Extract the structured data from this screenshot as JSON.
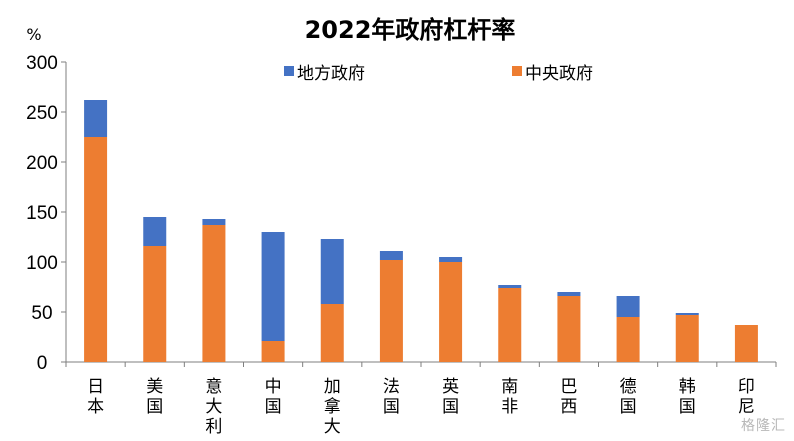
{
  "chart_data": {
    "type": "bar",
    "stacked": true,
    "title": "2022年政府杠杆率",
    "ylabel": "%",
    "xlabel": "",
    "ylim": [
      0,
      300
    ],
    "yticks": [
      0,
      50,
      100,
      150,
      200,
      250,
      300
    ],
    "grid": false,
    "legend_position": "top",
    "categories": [
      "日本",
      "美国",
      "意大利",
      "中国",
      "加拿大",
      "法国",
      "英国",
      "南非",
      "巴西",
      "德国",
      "韩国",
      "印尼"
    ],
    "series": [
      {
        "name": "中央政府",
        "color": "#ED7D31",
        "values": [
          225,
          116,
          137,
          21,
          58,
          102,
          100,
          74,
          66,
          45,
          47,
          37
        ]
      },
      {
        "name": "地方政府",
        "color": "#4472C4",
        "values": [
          37,
          29,
          6,
          109,
          65,
          9,
          5,
          3,
          4,
          21,
          2,
          0
        ]
      }
    ]
  },
  "watermark": "格隆汇"
}
